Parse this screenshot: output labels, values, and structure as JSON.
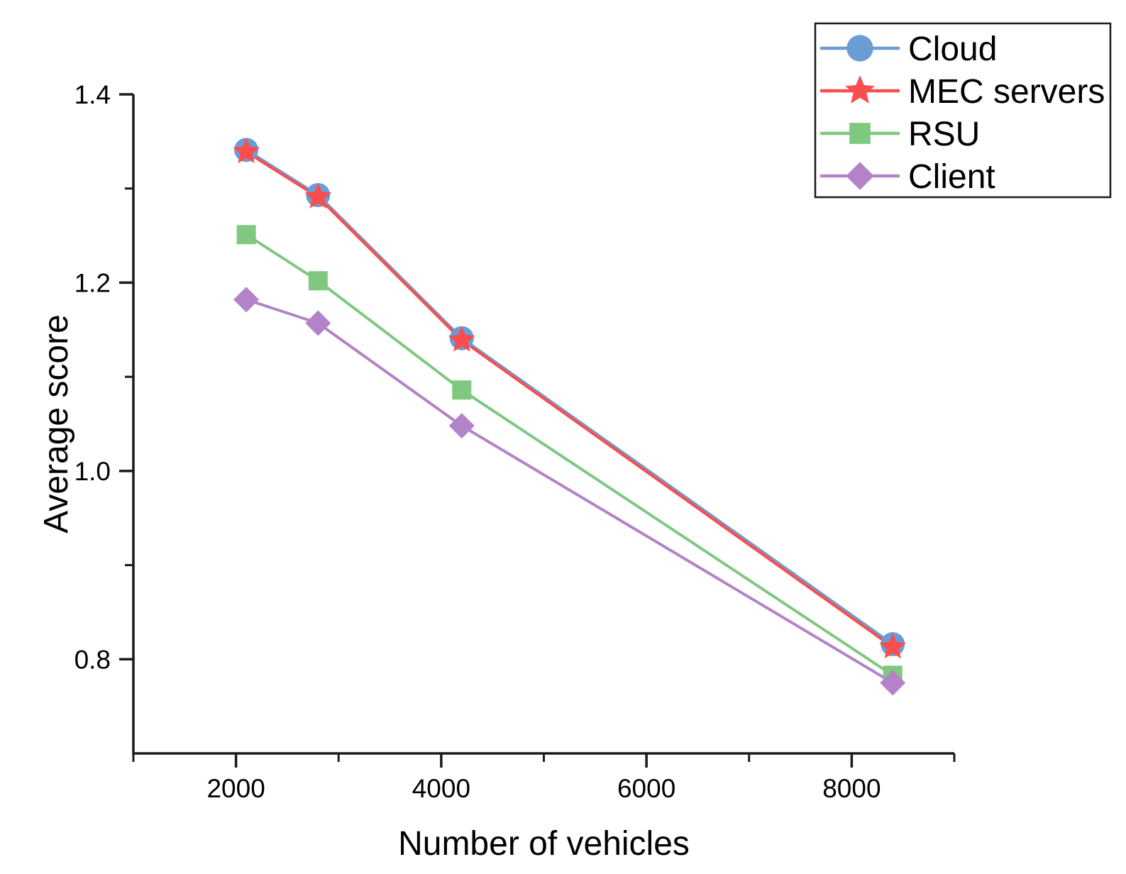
{
  "chart_data": {
    "type": "line",
    "title": "",
    "xlabel": "Number of vehicles",
    "ylabel": "Average score",
    "xlim": [
      1000,
      9000
    ],
    "ylim": [
      0.7,
      1.4
    ],
    "x_major_ticks": [
      2000,
      4000,
      6000,
      8000
    ],
    "x_major_tick_labels": [
      "2000",
      "4000",
      "6000",
      "8000"
    ],
    "x_minor_ticks": [
      1000,
      3000,
      5000,
      7000,
      9000
    ],
    "y_major_ticks": [
      0.8,
      1.0,
      1.2,
      1.4
    ],
    "y_major_tick_labels": [
      "0.8",
      "1.0",
      "1.2",
      "1.4"
    ],
    "y_minor_ticks": [
      0.9,
      1.1,
      1.3
    ],
    "grid": false,
    "x": [
      2100,
      2800,
      4200,
      8400
    ],
    "series": [
      {
        "name": "Cloud",
        "marker": "circle",
        "color": "#6A9DD5",
        "values": [
          1.341,
          1.293,
          1.141,
          0.816
        ]
      },
      {
        "name": "MEC servers",
        "marker": "star",
        "color": "#F94E4E",
        "values": [
          1.339,
          1.291,
          1.139,
          0.813
        ]
      },
      {
        "name": "RSU",
        "marker": "square",
        "color": "#80C880",
        "values": [
          1.251,
          1.202,
          1.086,
          0.783
        ]
      },
      {
        "name": "Client",
        "marker": "diamond",
        "color": "#B283C8",
        "values": [
          1.182,
          1.157,
          1.048,
          0.775
        ]
      }
    ],
    "legend": {
      "position": "top-right",
      "labels": [
        "Cloud",
        "MEC servers",
        "RSU",
        "Client"
      ]
    },
    "colors": {
      "axis": "#1a1a1a",
      "text": "#000000",
      "background": "#ffffff"
    }
  }
}
